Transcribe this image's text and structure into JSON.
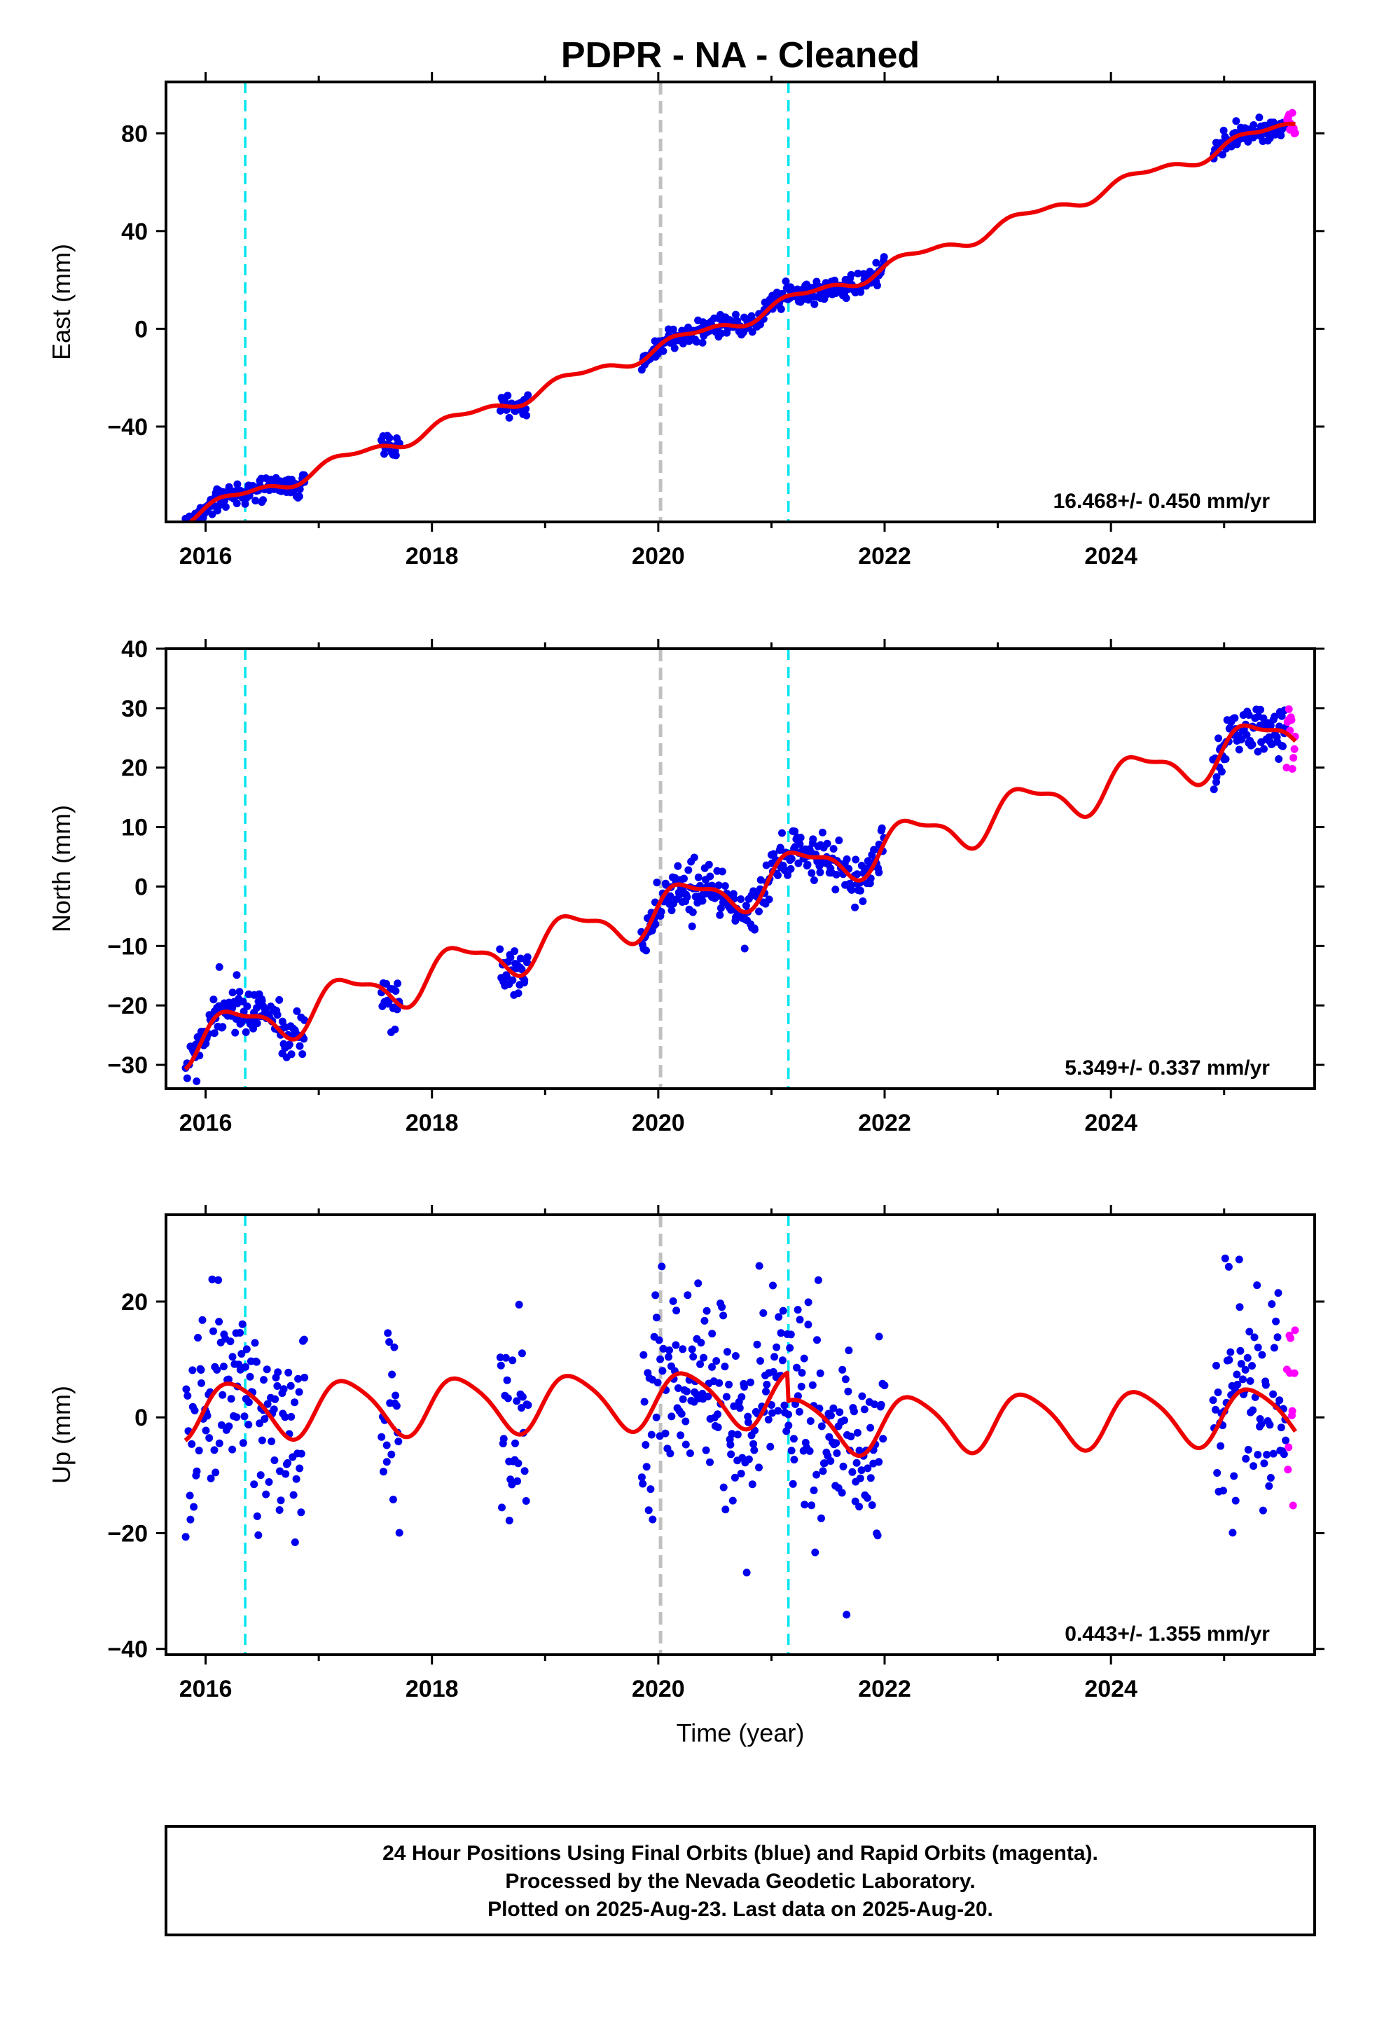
{
  "title": "PDPR  - NA - Cleaned",
  "colors": {
    "final_orbits": "#0000ee",
    "rapid_orbits": "#ff00ff",
    "model": "#ee0000",
    "antenna_change": "#00e5ee",
    "event": "#c0c0c0"
  },
  "footer": {
    "line1": "24 Hour Positions Using Final Orbits (blue) and Rapid Orbits (magenta).",
    "line2": "Processed by the Nevada Geodetic Laboratory.",
    "line3": "Plotted on 2025-Aug-23. Last data on 2025-Aug-20."
  },
  "xlabel": "Time (year)",
  "chart_data": [
    {
      "type": "scatter",
      "ylabel": "East (mm)",
      "rate": "16.468+/- 0.450 mm/yr",
      "xlim": [
        2015.65,
        2025.8
      ],
      "ylim": [
        -79,
        101
      ],
      "x_ticks": [
        2016,
        2018,
        2020,
        2022,
        2024
      ],
      "y_ticks": [
        -40,
        0,
        40,
        80
      ],
      "grid": false,
      "vlines": [
        {
          "x": 2016.35,
          "kind": "antenna_change"
        },
        {
          "x": 2020.02,
          "kind": "event"
        },
        {
          "x": 2021.15,
          "kind": "antenna_change"
        }
      ],
      "model": {
        "slope": 16.468,
        "intercept": -8.0,
        "t0": 2020.0,
        "amp1": 2.5,
        "amp2": 1.2,
        "offsets": [
          {
            "t": 2020.02,
            "dy": 0
          }
        ]
      },
      "series": [
        {
          "orbit": "final",
          "segments": [
            {
              "start": 2015.82,
              "end": 2016.88,
              "density": 120,
              "noise": 2.4
            },
            {
              "start": 2017.55,
              "end": 2017.72,
              "density": 120,
              "noise": 2.4
            },
            {
              "start": 2018.6,
              "end": 2018.85,
              "density": 120,
              "noise": 2.4
            },
            {
              "start": 2019.85,
              "end": 2022.0,
              "density": 120,
              "noise": 2.4
            },
            {
              "start": 2024.9,
              "end": 2025.55,
              "density": 120,
              "noise": 2.4
            }
          ]
        },
        {
          "orbit": "rapid",
          "segments": [
            {
              "start": 2025.55,
              "end": 2025.63,
              "density": 140,
              "noise": 3.5
            }
          ]
        }
      ]
    },
    {
      "type": "scatter",
      "ylabel": "North (mm)",
      "rate": "5.349+/- 0.337 mm/yr",
      "xlim": [
        2015.65,
        2025.8
      ],
      "ylim": [
        -34,
        40
      ],
      "x_ticks": [
        2016,
        2018,
        2020,
        2022,
        2024
      ],
      "y_ticks": [
        -30,
        -20,
        -10,
        0,
        10,
        20,
        30,
        40
      ],
      "grid": false,
      "vlines": [
        {
          "x": 2016.35,
          "kind": "antenna_change"
        },
        {
          "x": 2020.02,
          "kind": "event"
        },
        {
          "x": 2021.15,
          "kind": "antenna_change"
        }
      ],
      "model": {
        "slope": 5.349,
        "intercept": -4.0,
        "t0": 2020.0,
        "amp1": 3.5,
        "amp2": 1.2,
        "offsets": [
          {
            "t": 2020.02,
            "dy": 0
          }
        ]
      },
      "series": [
        {
          "orbit": "final",
          "segments": [
            {
              "start": 2015.82,
              "end": 2016.88,
              "density": 120,
              "noise": 2.1
            },
            {
              "start": 2017.55,
              "end": 2017.72,
              "density": 120,
              "noise": 2.1
            },
            {
              "start": 2018.6,
              "end": 2018.85,
              "density": 120,
              "noise": 2.1
            },
            {
              "start": 2019.85,
              "end": 2022.0,
              "density": 120,
              "noise": 2.1
            },
            {
              "start": 2024.9,
              "end": 2025.55,
              "density": 120,
              "noise": 2.1
            }
          ]
        },
        {
          "orbit": "rapid",
          "segments": [
            {
              "start": 2025.55,
              "end": 2025.63,
              "density": 140,
              "noise": 3.0
            }
          ]
        }
      ]
    },
    {
      "type": "scatter",
      "ylabel": "Up (mm)",
      "rate": "0.443+/- 1.355 mm/yr",
      "xlim": [
        2015.65,
        2025.8
      ],
      "ylim": [
        -41,
        35
      ],
      "x_ticks": [
        2016,
        2018,
        2020,
        2022,
        2024
      ],
      "y_ticks": [
        -40,
        -20,
        0,
        20
      ],
      "grid": false,
      "vlines": [
        {
          "x": 2016.35,
          "kind": "antenna_change"
        },
        {
          "x": 2020.02,
          "kind": "event"
        },
        {
          "x": 2021.15,
          "kind": "antenna_change"
        }
      ],
      "model": {
        "slope": 0.443,
        "intercept": 3.0,
        "t0": 2020.0,
        "amp1": 4.8,
        "amp2": 0.8,
        "offsets": [
          {
            "t": 2021.15,
            "dy": -5.0
          }
        ]
      },
      "series": [
        {
          "orbit": "final",
          "segments": [
            {
              "start": 2015.82,
              "end": 2016.88,
              "density": 120,
              "noise": 9.0
            },
            {
              "start": 2017.55,
              "end": 2017.72,
              "density": 120,
              "noise": 9.0
            },
            {
              "start": 2018.6,
              "end": 2018.85,
              "density": 120,
              "noise": 9.0
            },
            {
              "start": 2019.85,
              "end": 2022.0,
              "density": 120,
              "noise": 9.0
            },
            {
              "start": 2024.9,
              "end": 2025.55,
              "density": 120,
              "noise": 9.0
            }
          ]
        },
        {
          "orbit": "rapid",
          "segments": [
            {
              "start": 2025.55,
              "end": 2025.63,
              "density": 140,
              "noise": 9.0
            }
          ]
        }
      ]
    }
  ]
}
